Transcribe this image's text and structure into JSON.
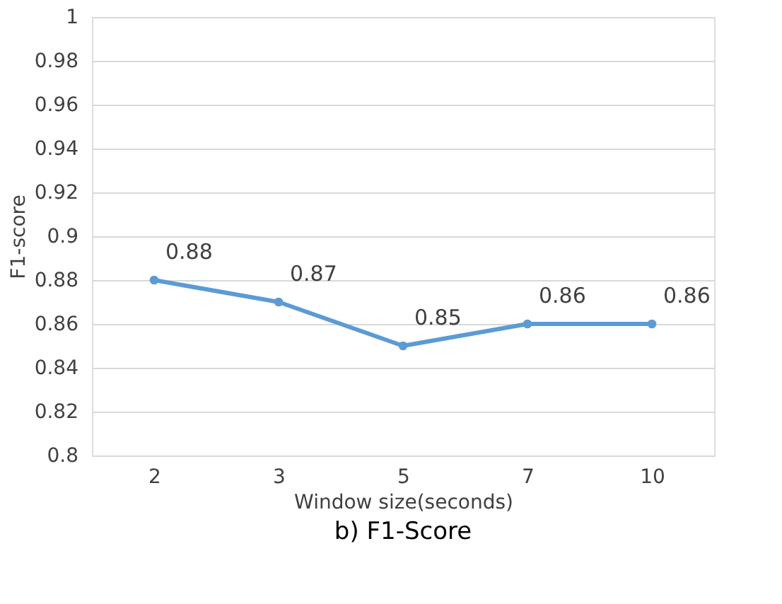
{
  "chart_data": {
    "type": "line",
    "title": "b) F1-Score",
    "xlabel": "Window size(seconds)",
    "ylabel": "F1-score",
    "categories": [
      "2",
      "3",
      "5",
      "7",
      "10"
    ],
    "series": [
      {
        "color": "#5b9bd5",
        "values": [
          0.88,
          0.87,
          0.85,
          0.86,
          0.86
        ]
      }
    ],
    "ylim": [
      0.8,
      1
    ],
    "yticks": [
      0.8,
      0.82,
      0.84,
      0.86,
      0.88,
      0.9,
      0.92,
      0.94,
      0.96,
      0.98,
      1
    ],
    "grid": "y",
    "legend": false,
    "marker": "circle",
    "line_style": "solid",
    "data_labels": true
  }
}
